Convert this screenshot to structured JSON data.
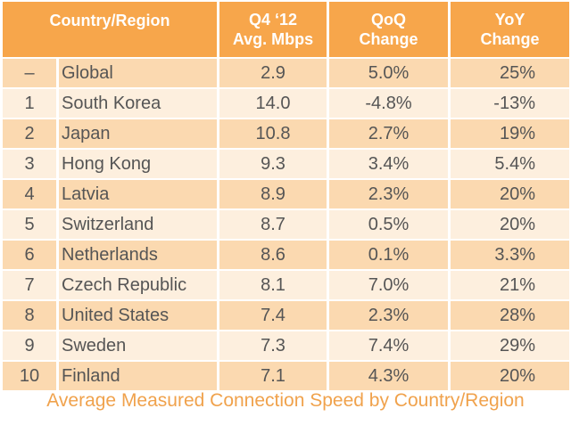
{
  "table": {
    "headers": {
      "country_region": "Country/Region",
      "speed_line1": "Q4 ‘12",
      "speed_line2": "Avg. Mbps",
      "qoq_line1": "QoQ",
      "qoq_line2": "Change",
      "yoy_line1": "YoY",
      "yoy_line2": "Change"
    },
    "rows": [
      {
        "rank": "–",
        "country": "Global",
        "speed": "2.9",
        "qoq": "5.0%",
        "yoy": "25%"
      },
      {
        "rank": "1",
        "country": "South Korea",
        "speed": "14.0",
        "qoq": "-4.8%",
        "yoy": "-13%"
      },
      {
        "rank": "2",
        "country": "Japan",
        "speed": "10.8",
        "qoq": "2.7%",
        "yoy": "19%"
      },
      {
        "rank": "3",
        "country": "Hong Kong",
        "speed": "9.3",
        "qoq": "3.4%",
        "yoy": "5.4%"
      },
      {
        "rank": "4",
        "country": "Latvia",
        "speed": "8.9",
        "qoq": "2.3%",
        "yoy": "20%"
      },
      {
        "rank": "5",
        "country": "Switzerland",
        "speed": "8.7",
        "qoq": "0.5%",
        "yoy": "20%"
      },
      {
        "rank": "6",
        "country": "Netherlands",
        "speed": "8.6",
        "qoq": "0.1%",
        "yoy": "3.3%"
      },
      {
        "rank": "7",
        "country": "Czech Republic",
        "speed": "8.1",
        "qoq": "7.0%",
        "yoy": "21%"
      },
      {
        "rank": "8",
        "country": "United States",
        "speed": "7.4",
        "qoq": "2.3%",
        "yoy": "28%"
      },
      {
        "rank": "9",
        "country": "Sweden",
        "speed": "7.3",
        "qoq": "7.4%",
        "yoy": "29%"
      },
      {
        "rank": "10",
        "country": "Finland",
        "speed": "7.1",
        "qoq": "4.3%",
        "yoy": "20%"
      }
    ]
  },
  "caption": "Average Measured Connection Speed by Country/Region",
  "colors": {
    "header_bg": "#f7a64b",
    "row_odd_bg": "#fbd9b0",
    "row_even_bg": "#fdefde",
    "caption_text": "#f0a24c"
  }
}
